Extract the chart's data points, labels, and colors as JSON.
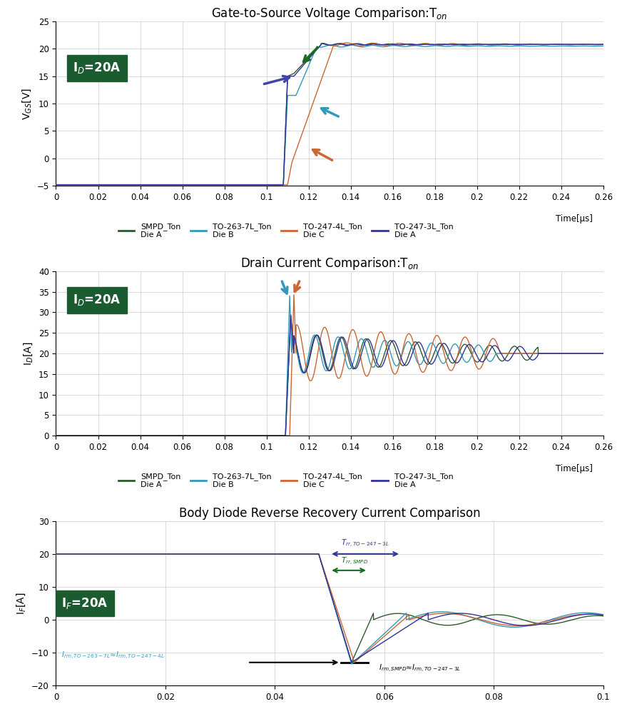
{
  "plot1": {
    "title": "Gate-to-Source Voltage Comparison:T",
    "title_sub": "on",
    "ylabel": "V$_{GS}$[V]",
    "xlim": [
      0,
      0.26
    ],
    "ylim": [
      -5,
      25
    ],
    "yticks": [
      -5,
      0,
      5,
      10,
      15,
      20,
      25
    ],
    "xticks": [
      0,
      0.02,
      0.04,
      0.06,
      0.08,
      0.1,
      0.12,
      0.14,
      0.16,
      0.18,
      0.2,
      0.22,
      0.24,
      0.26
    ],
    "label_box": "I$_D$=20A"
  },
  "plot2": {
    "title": "Drain Current Comparison:T",
    "title_sub": "on",
    "ylabel": "I$_D$[A]",
    "xlim": [
      0,
      0.26
    ],
    "ylim": [
      0,
      40
    ],
    "yticks": [
      0,
      5,
      10,
      15,
      20,
      25,
      30,
      35,
      40
    ],
    "xticks": [
      0,
      0.02,
      0.04,
      0.06,
      0.08,
      0.1,
      0.12,
      0.14,
      0.16,
      0.18,
      0.2,
      0.22,
      0.24,
      0.26
    ],
    "label_box": "I$_D$=20A"
  },
  "plot3": {
    "title": "Body Diode Reverse Recovery Current Comparison",
    "ylabel": "I$_F$[A]",
    "xlim": [
      0,
      0.1
    ],
    "ylim": [
      -20,
      30
    ],
    "yticks": [
      -20,
      -10,
      0,
      10,
      20,
      30
    ],
    "xticks": [
      0,
      0.02,
      0.04,
      0.06,
      0.08,
      0.1
    ],
    "label_box": "I$_F$=20A"
  },
  "colors": {
    "SMPD": "#2d5a2d",
    "TO263": "#3399bb",
    "TO247_4L": "#cc6633",
    "TO247_3L": "#333399"
  },
  "legend_entries": [
    [
      "SMPD_Ton",
      "Die A"
    ],
    [
      "TO-263-7L_Ton",
      "Die B"
    ],
    [
      "TO-247-4L_Ton",
      "Die C"
    ],
    [
      "TO-247-3L_Ton",
      "Die A"
    ]
  ]
}
